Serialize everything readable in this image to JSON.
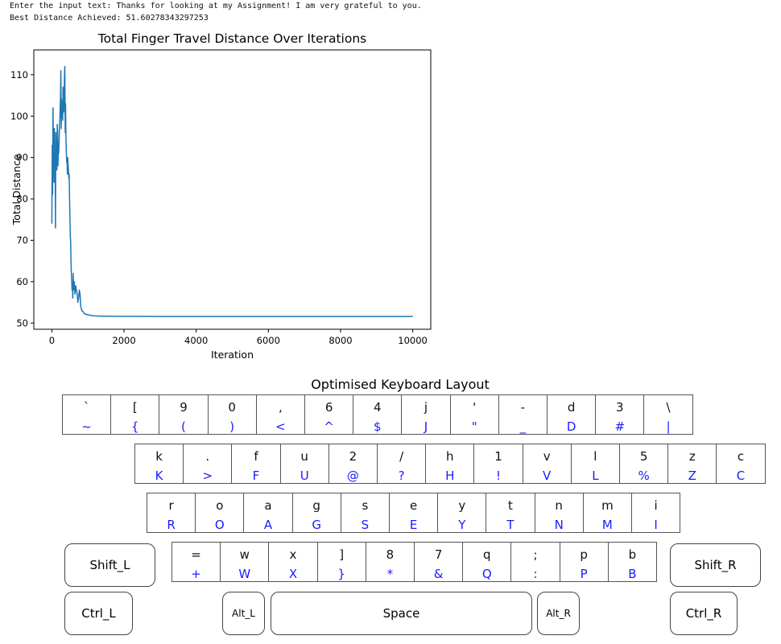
{
  "console": {
    "line1": "Enter the input text: Thanks for looking at my Assignment! I am very grateful to you.",
    "line2": "Best Distance Achieved: 51.60278343297253"
  },
  "chart_data": {
    "type": "line",
    "title": "Total Finger Travel Distance Over Iterations",
    "xlabel": "Iteration",
    "ylabel": "Total Distance",
    "xlim": [
      -500,
      10500
    ],
    "ylim": [
      48.5,
      116
    ],
    "xticks": [
      0,
      2000,
      4000,
      6000,
      8000,
      10000
    ],
    "yticks": [
      50,
      60,
      70,
      80,
      90,
      100,
      110
    ],
    "grid": false,
    "color": "#1f77b4",
    "series": [
      {
        "x": [
          0,
          10,
          20,
          30,
          40,
          50,
          60,
          70,
          80,
          90,
          100,
          110,
          120,
          130,
          140,
          150,
          160,
          170,
          180,
          190,
          200,
          210,
          220,
          230,
          240,
          250,
          260,
          270,
          280,
          290,
          300,
          310,
          320,
          330,
          340,
          350,
          360,
          370,
          380,
          390,
          400,
          410,
          420,
          430,
          440,
          450,
          460,
          470,
          480,
          490,
          500,
          510,
          520,
          530,
          540,
          550,
          560,
          570,
          580,
          590,
          600,
          620,
          640,
          660,
          680,
          700,
          720,
          740,
          760,
          780,
          800,
          830,
          860,
          900,
          950,
          1000,
          1050,
          1100,
          1200,
          1400,
          1600,
          1800,
          2000,
          3000,
          5000,
          8000,
          10000
        ],
        "y": [
          74,
          93,
          81,
          102,
          95,
          89,
          84,
          97,
          85,
          92,
          73,
          96,
          90,
          94,
          87,
          98,
          96,
          88,
          92,
          91,
          94,
          97,
          99,
          102,
          105,
          111,
          97,
          104,
          100,
          103,
          99,
          107,
          102,
          101,
          104,
          110,
          112,
          96,
          103,
          95,
          92,
          89,
          90,
          86,
          90,
          88,
          87,
          85,
          86,
          80,
          76,
          71,
          70,
          65,
          62,
          60,
          58,
          59,
          56,
          62,
          58,
          60,
          57,
          59,
          58,
          57,
          55,
          56,
          58,
          57,
          54,
          53,
          52.8,
          52.3,
          52.1,
          52,
          51.9,
          51.8,
          51.7,
          51.65,
          51.63,
          51.62,
          51.61,
          51.6,
          51.6,
          51.6,
          51.6
        ]
      }
    ]
  },
  "keyboard": {
    "title": "Optimised Keyboard Layout",
    "rows": [
      {
        "keys": [
          [
            "`",
            "~"
          ],
          [
            "[",
            "{"
          ],
          [
            "9",
            "("
          ],
          [
            "0",
            ")"
          ],
          [
            ",",
            "<"
          ],
          [
            "6",
            "^"
          ],
          [
            "4",
            "$"
          ],
          [
            "j",
            "J"
          ],
          [
            "'",
            "\""
          ],
          [
            "-",
            "_"
          ],
          [
            "d",
            "D"
          ],
          [
            "3",
            "#"
          ],
          [
            "\\",
            "|"
          ]
        ]
      },
      {
        "keys": [
          [
            "k",
            "K"
          ],
          [
            ".",
            ">"
          ],
          [
            "f",
            "F"
          ],
          [
            "u",
            "U"
          ],
          [
            "2",
            "@"
          ],
          [
            "/",
            "?"
          ],
          [
            "h",
            "H"
          ],
          [
            "1",
            "!"
          ],
          [
            "v",
            "V"
          ],
          [
            "l",
            "L"
          ],
          [
            "5",
            "%"
          ],
          [
            "z",
            "Z"
          ],
          [
            "c",
            "C"
          ]
        ]
      },
      {
        "keys": [
          [
            "r",
            "R"
          ],
          [
            "o",
            "O"
          ],
          [
            "a",
            "A"
          ],
          [
            "g",
            "G"
          ],
          [
            "s",
            "S"
          ],
          [
            "e",
            "E"
          ],
          [
            "y",
            "Y"
          ],
          [
            "t",
            "T"
          ],
          [
            "n",
            "N"
          ],
          [
            "m",
            "M"
          ],
          [
            "i",
            "I"
          ]
        ]
      },
      {
        "keys": [
          [
            "=",
            "+"
          ],
          [
            "w",
            "W"
          ],
          [
            "x",
            "X"
          ],
          [
            "]",
            "}"
          ],
          [
            "8",
            "*"
          ],
          [
            "7",
            "&"
          ],
          [
            "q",
            "Q"
          ],
          [
            ";",
            ":"
          ],
          [
            "p",
            "P"
          ],
          [
            "b",
            "B"
          ]
        ]
      }
    ],
    "special": {
      "shift_l": "Shift_L",
      "shift_r": "Shift_R",
      "ctrl_l": "Ctrl_L",
      "ctrl_r": "Ctrl_R",
      "alt_l": "Alt_L",
      "alt_r": "Alt_R",
      "space": "Space"
    }
  }
}
